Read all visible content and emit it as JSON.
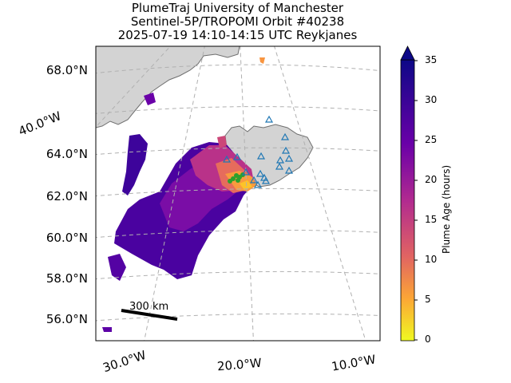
{
  "title": {
    "line1": "PlumeTraj    University of Manchester",
    "line2": "Sentinel-5P/TROPOMI Orbit #40238",
    "line3": "2025-07-19   14:10-14:15 UTC   Reykjanes"
  },
  "map": {
    "lat_labels": [
      "68.0°N",
      "64.0°N",
      "62.0°N",
      "60.0°N",
      "58.0°N",
      "56.0°N"
    ],
    "lon_labels": [
      "30.0°W",
      "20.0°W",
      "10.0°W"
    ],
    "side_label": "40.0°W",
    "scale_bar_label": "300 km",
    "land_color": "#d3d3d3",
    "graticule_color": "#b0b0b0",
    "volcano_marker_color": "#1f77b4"
  },
  "colorbar": {
    "label": "Plume Age (hours)",
    "ticks": [
      "35",
      "30",
      "25",
      "20",
      "15",
      "10",
      "5",
      "0"
    ],
    "min": 0,
    "max": 35,
    "colormap": "plasma_r"
  }
}
